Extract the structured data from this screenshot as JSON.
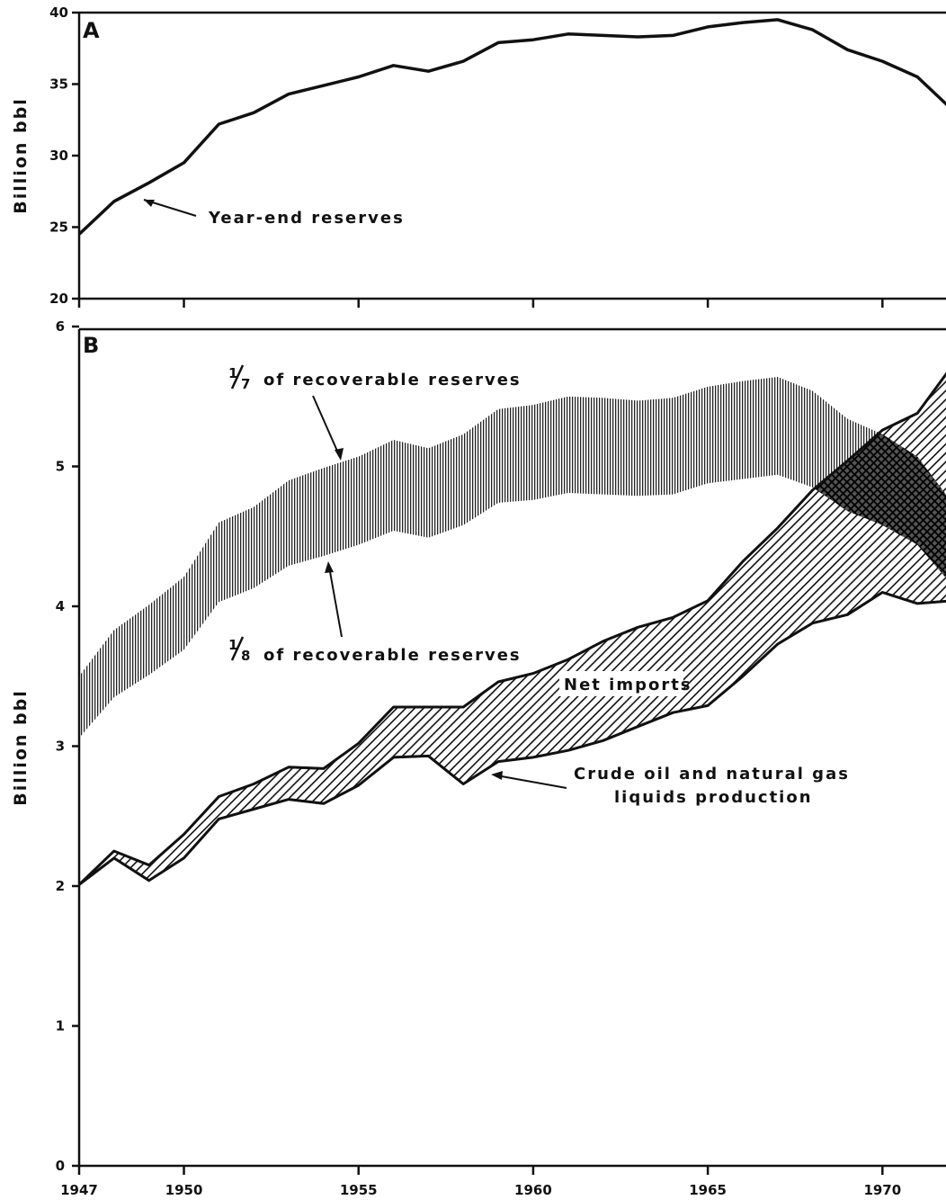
{
  "chart_data": [
    {
      "panel": "A",
      "type": "line",
      "ylabel": "Billion  bbl",
      "ylim": [
        20,
        40
      ],
      "yticks": [
        "20",
        "25",
        "30",
        "35",
        "40"
      ],
      "xlim": [
        1947,
        1972
      ],
      "series": [
        {
          "x": [
            1947,
            1948,
            1949,
            1950,
            1951,
            1952,
            1953,
            1954,
            1955,
            1956,
            1957,
            1958,
            1959,
            1960,
            1961,
            1962,
            1963,
            1964,
            1965,
            1966,
            1967,
            1968,
            1969,
            1970,
            1971,
            1972
          ],
          "values": [
            24.5,
            26.8,
            28.1,
            29.5,
            32.2,
            33.0,
            34.3,
            34.9,
            35.5,
            36.3,
            35.9,
            36.6,
            37.9,
            38.1,
            38.5,
            38.4,
            38.3,
            38.4,
            39.0,
            39.3,
            39.5,
            38.8,
            37.4,
            36.6,
            35.5,
            33.2
          ]
        }
      ],
      "annotations": [
        {
          "text": "Year-end  reserves"
        }
      ]
    },
    {
      "panel": "B",
      "type": "area",
      "ylabel": "Billion  bbl",
      "ylim": [
        0,
        6
      ],
      "yticks": [
        "0",
        "1",
        "2",
        "3",
        "4",
        "5",
        "6"
      ],
      "xlim": [
        1947,
        1972
      ],
      "x": [
        1947,
        1948,
        1949,
        1950,
        1951,
        1952,
        1953,
        1954,
        1955,
        1956,
        1957,
        1958,
        1959,
        1960,
        1961,
        1962,
        1963,
        1964,
        1965,
        1966,
        1967,
        1968,
        1969,
        1970,
        1971,
        1972
      ],
      "xtick_labels": [
        "1947",
        "1950",
        "1955",
        "1960",
        "1965",
        "1970"
      ],
      "xtick_values": [
        1947,
        1950,
        1955,
        1960,
        1965,
        1970
      ],
      "series": [
        {
          "name": "1/7 of recoverable reserves",
          "values": [
            3.5,
            3.83,
            4.01,
            4.21,
            4.6,
            4.71,
            4.9,
            4.99,
            5.07,
            5.19,
            5.13,
            5.23,
            5.41,
            5.44,
            5.5,
            5.49,
            5.47,
            5.49,
            5.57,
            5.61,
            5.64,
            5.54,
            5.34,
            5.23,
            5.07,
            4.74
          ]
        },
        {
          "name": "1/8 of recoverable reserves",
          "values": [
            3.06,
            3.35,
            3.51,
            3.69,
            4.03,
            4.13,
            4.29,
            4.36,
            4.44,
            4.54,
            4.49,
            4.58,
            4.74,
            4.76,
            4.81,
            4.8,
            4.79,
            4.8,
            4.88,
            4.91,
            4.94,
            4.85,
            4.68,
            4.58,
            4.44,
            4.15
          ]
        },
        {
          "name": "Crude oil and natural gas liquids production",
          "values": [
            2.01,
            2.2,
            2.04,
            2.2,
            2.48,
            2.55,
            2.62,
            2.59,
            2.72,
            2.92,
            2.93,
            2.73,
            2.89,
            2.92,
            2.97,
            3.04,
            3.14,
            3.24,
            3.29,
            3.5,
            3.73,
            3.88,
            3.94,
            4.1,
            4.02,
            4.04
          ]
        },
        {
          "name": "Net imports",
          "total_supply": [
            2.01,
            2.25,
            2.15,
            2.37,
            2.64,
            2.73,
            2.85,
            2.84,
            3.02,
            3.28,
            3.28,
            3.28,
            3.46,
            3.52,
            3.62,
            3.75,
            3.85,
            3.92,
            4.04,
            4.32,
            4.56,
            4.83,
            5.04,
            5.26,
            5.38,
            5.72
          ]
        }
      ],
      "annotations": [
        {
          "num": "1",
          "den": "7",
          "text": "of  recoverable  reserves"
        },
        {
          "num": "1",
          "den": "8",
          "text": "of  recoverable  reserves"
        },
        {
          "text": "Net imports"
        },
        {
          "text": "Crude  oil  and  natural  gas"
        },
        {
          "text": "liquids  production"
        }
      ]
    }
  ]
}
